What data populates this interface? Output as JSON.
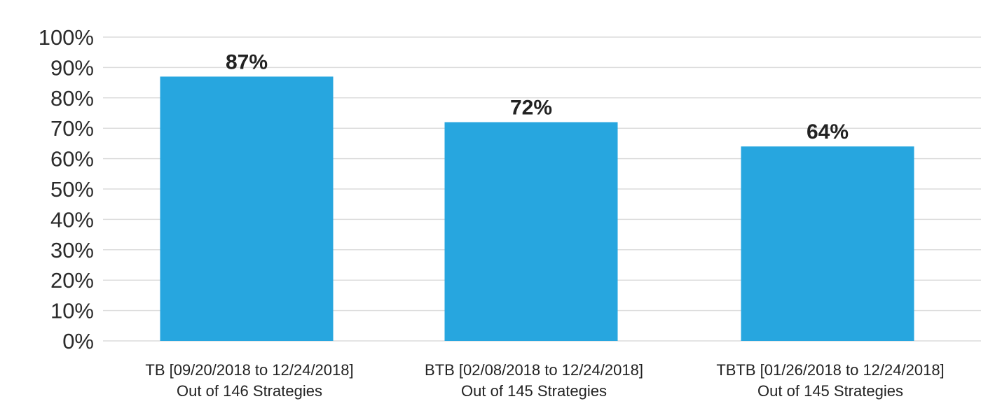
{
  "chart_data": {
    "type": "bar",
    "title": "",
    "xlabel": "",
    "ylabel": "",
    "ylim": [
      0,
      100
    ],
    "y_ticks": [
      0,
      10,
      20,
      30,
      40,
      50,
      60,
      70,
      80,
      90,
      100
    ],
    "y_tick_labels": [
      "0%",
      "10%",
      "20%",
      "30%",
      "40%",
      "50%",
      "60%",
      "70%",
      "80%",
      "90%",
      "100%"
    ],
    "grid": true,
    "categories": [
      [
        "TB [09/20/2018 to 12/24/2018]",
        "Out of 146 Strategies"
      ],
      [
        "BTB [02/08/2018 to 12/24/2018]",
        "Out of 145 Strategies"
      ],
      [
        "TBTB [01/26/2018 to 12/24/2018]",
        "Out of 145 Strategies"
      ]
    ],
    "values": [
      87,
      72,
      64
    ],
    "data_labels": [
      "87%",
      "72%",
      "64%"
    ],
    "bar_color": "#27a6df",
    "grid_color": "#dcdcdc",
    "text_color": "#222222"
  }
}
